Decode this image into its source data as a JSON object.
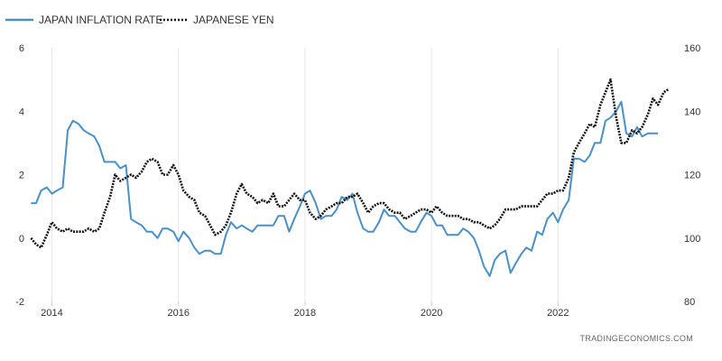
{
  "chart_data": {
    "type": "line",
    "source": "TRADINGECONOMICS.COM",
    "legend_position": "top-left",
    "grid": "vertical",
    "x_ticks": [
      "2014",
      "2016",
      "2018",
      "2020",
      "2022"
    ],
    "x_range": [
      2013.65,
      2023.85
    ],
    "left_axis": {
      "ticks": [
        "-2",
        "0",
        "2",
        "4",
        "6"
      ],
      "range": [
        -2,
        6
      ]
    },
    "right_axis": {
      "ticks": [
        "80",
        "100",
        "120",
        "140",
        "160"
      ],
      "range": [
        80,
        160
      ]
    },
    "colors": {
      "inflation": "#4a90c8",
      "yen": "#111111"
    },
    "series": [
      {
        "name": "JAPAN INFLATION RATE",
        "axis": "left",
        "style": "solid",
        "points": [
          [
            2013.67,
            1.1
          ],
          [
            2013.75,
            1.1
          ],
          [
            2013.83,
            1.5
          ],
          [
            2013.92,
            1.6
          ],
          [
            2014.0,
            1.4
          ],
          [
            2014.08,
            1.5
          ],
          [
            2014.17,
            1.6
          ],
          [
            2014.25,
            3.4
          ],
          [
            2014.33,
            3.7
          ],
          [
            2014.42,
            3.6
          ],
          [
            2014.5,
            3.4
          ],
          [
            2014.58,
            3.3
          ],
          [
            2014.67,
            3.2
          ],
          [
            2014.75,
            2.9
          ],
          [
            2014.83,
            2.4
          ],
          [
            2014.92,
            2.4
          ],
          [
            2015.0,
            2.4
          ],
          [
            2015.08,
            2.2
          ],
          [
            2015.17,
            2.3
          ],
          [
            2015.25,
            0.6
          ],
          [
            2015.33,
            0.5
          ],
          [
            2015.42,
            0.4
          ],
          [
            2015.5,
            0.2
          ],
          [
            2015.58,
            0.2
          ],
          [
            2015.67,
            0.0
          ],
          [
            2015.75,
            0.3
          ],
          [
            2015.83,
            0.3
          ],
          [
            2015.92,
            0.2
          ],
          [
            2016.0,
            -0.1
          ],
          [
            2016.08,
            0.2
          ],
          [
            2016.17,
            0.0
          ],
          [
            2016.25,
            -0.3
          ],
          [
            2016.33,
            -0.5
          ],
          [
            2016.42,
            -0.4
          ],
          [
            2016.5,
            -0.4
          ],
          [
            2016.58,
            -0.5
          ],
          [
            2016.67,
            -0.5
          ],
          [
            2016.75,
            0.1
          ],
          [
            2016.83,
            0.5
          ],
          [
            2016.92,
            0.3
          ],
          [
            2017.0,
            0.4
          ],
          [
            2017.08,
            0.3
          ],
          [
            2017.17,
            0.2
          ],
          [
            2017.25,
            0.4
          ],
          [
            2017.33,
            0.4
          ],
          [
            2017.42,
            0.4
          ],
          [
            2017.5,
            0.4
          ],
          [
            2017.58,
            0.7
          ],
          [
            2017.67,
            0.7
          ],
          [
            2017.75,
            0.2
          ],
          [
            2017.83,
            0.6
          ],
          [
            2017.92,
            1.0
          ],
          [
            2018.0,
            1.4
          ],
          [
            2018.08,
            1.5
          ],
          [
            2018.17,
            1.1
          ],
          [
            2018.25,
            0.6
          ],
          [
            2018.33,
            0.7
          ],
          [
            2018.42,
            0.7
          ],
          [
            2018.5,
            0.9
          ],
          [
            2018.58,
            1.3
          ],
          [
            2018.67,
            1.2
          ],
          [
            2018.75,
            1.4
          ],
          [
            2018.83,
            0.8
          ],
          [
            2018.92,
            0.3
          ],
          [
            2019.0,
            0.2
          ],
          [
            2019.08,
            0.2
          ],
          [
            2019.17,
            0.5
          ],
          [
            2019.25,
            0.9
          ],
          [
            2019.33,
            0.7
          ],
          [
            2019.42,
            0.7
          ],
          [
            2019.5,
            0.5
          ],
          [
            2019.58,
            0.3
          ],
          [
            2019.67,
            0.2
          ],
          [
            2019.75,
            0.2
          ],
          [
            2019.83,
            0.5
          ],
          [
            2019.92,
            0.8
          ],
          [
            2020.0,
            0.7
          ],
          [
            2020.08,
            0.4
          ],
          [
            2020.17,
            0.4
          ],
          [
            2020.25,
            0.1
          ],
          [
            2020.33,
            0.1
          ],
          [
            2020.42,
            0.1
          ],
          [
            2020.5,
            0.3
          ],
          [
            2020.58,
            0.2
          ],
          [
            2020.67,
            0.0
          ],
          [
            2020.75,
            -0.4
          ],
          [
            2020.83,
            -0.9
          ],
          [
            2020.92,
            -1.2
          ],
          [
            2021.0,
            -0.7
          ],
          [
            2021.08,
            -0.5
          ],
          [
            2021.17,
            -0.4
          ],
          [
            2021.25,
            -1.1
          ],
          [
            2021.33,
            -0.8
          ],
          [
            2021.42,
            -0.5
          ],
          [
            2021.5,
            -0.3
          ],
          [
            2021.58,
            -0.4
          ],
          [
            2021.67,
            0.2
          ],
          [
            2021.75,
            0.1
          ],
          [
            2021.83,
            0.6
          ],
          [
            2021.92,
            0.8
          ],
          [
            2022.0,
            0.5
          ],
          [
            2022.08,
            0.9
          ],
          [
            2022.17,
            1.2
          ],
          [
            2022.25,
            2.5
          ],
          [
            2022.33,
            2.5
          ],
          [
            2022.42,
            2.4
          ],
          [
            2022.5,
            2.6
          ],
          [
            2022.58,
            3.0
          ],
          [
            2022.67,
            3.0
          ],
          [
            2022.75,
            3.7
          ],
          [
            2022.83,
            3.8
          ],
          [
            2022.92,
            4.0
          ],
          [
            2023.0,
            4.3
          ],
          [
            2023.08,
            3.3
          ],
          [
            2023.17,
            3.2
          ],
          [
            2023.25,
            3.5
          ],
          [
            2023.33,
            3.2
          ],
          [
            2023.42,
            3.3
          ],
          [
            2023.5,
            3.3
          ],
          [
            2023.58,
            3.3
          ]
        ]
      },
      {
        "name": "JAPANESE YEN",
        "axis": "right",
        "style": "dotted",
        "points": [
          [
            2013.67,
            100
          ],
          [
            2013.75,
            98
          ],
          [
            2013.83,
            97
          ],
          [
            2013.92,
            101
          ],
          [
            2014.0,
            105
          ],
          [
            2014.08,
            103
          ],
          [
            2014.17,
            102
          ],
          [
            2014.25,
            103
          ],
          [
            2014.33,
            102
          ],
          [
            2014.42,
            102
          ],
          [
            2014.5,
            102
          ],
          [
            2014.58,
            103
          ],
          [
            2014.67,
            102
          ],
          [
            2014.75,
            103
          ],
          [
            2014.83,
            108
          ],
          [
            2014.92,
            113
          ],
          [
            2015.0,
            120
          ],
          [
            2015.08,
            118
          ],
          [
            2015.17,
            119
          ],
          [
            2015.25,
            120
          ],
          [
            2015.33,
            119
          ],
          [
            2015.42,
            121
          ],
          [
            2015.5,
            124
          ],
          [
            2015.58,
            125
          ],
          [
            2015.67,
            124
          ],
          [
            2015.75,
            120
          ],
          [
            2015.83,
            120
          ],
          [
            2015.92,
            123
          ],
          [
            2016.0,
            120
          ],
          [
            2016.08,
            115
          ],
          [
            2016.17,
            113
          ],
          [
            2016.25,
            112
          ],
          [
            2016.33,
            108
          ],
          [
            2016.42,
            107
          ],
          [
            2016.5,
            104
          ],
          [
            2016.58,
            101
          ],
          [
            2016.67,
            102
          ],
          [
            2016.75,
            104
          ],
          [
            2016.83,
            108
          ],
          [
            2016.92,
            114
          ],
          [
            2017.0,
            117
          ],
          [
            2017.08,
            114
          ],
          [
            2017.17,
            113
          ],
          [
            2017.25,
            111
          ],
          [
            2017.33,
            112
          ],
          [
            2017.42,
            111
          ],
          [
            2017.5,
            114
          ],
          [
            2017.58,
            110
          ],
          [
            2017.67,
            110
          ],
          [
            2017.75,
            112
          ],
          [
            2017.83,
            114
          ],
          [
            2017.92,
            112
          ],
          [
            2018.0,
            112
          ],
          [
            2018.08,
            108
          ],
          [
            2018.17,
            106
          ],
          [
            2018.25,
            107
          ],
          [
            2018.33,
            109
          ],
          [
            2018.42,
            110
          ],
          [
            2018.5,
            111
          ],
          [
            2018.58,
            111
          ],
          [
            2018.67,
            113
          ],
          [
            2018.75,
            113
          ],
          [
            2018.83,
            114
          ],
          [
            2018.92,
            111
          ],
          [
            2019.0,
            108
          ],
          [
            2019.08,
            110
          ],
          [
            2019.17,
            111
          ],
          [
            2019.25,
            111
          ],
          [
            2019.33,
            109
          ],
          [
            2019.42,
            108
          ],
          [
            2019.5,
            108
          ],
          [
            2019.58,
            106
          ],
          [
            2019.67,
            107
          ],
          [
            2019.75,
            108
          ],
          [
            2019.83,
            109
          ],
          [
            2019.92,
            109
          ],
          [
            2020.0,
            108
          ],
          [
            2020.08,
            110
          ],
          [
            2020.17,
            108
          ],
          [
            2020.25,
            107
          ],
          [
            2020.33,
            107
          ],
          [
            2020.42,
            107
          ],
          [
            2020.5,
            106
          ],
          [
            2020.58,
            106
          ],
          [
            2020.67,
            105
          ],
          [
            2020.75,
            105
          ],
          [
            2020.83,
            104
          ],
          [
            2020.92,
            103
          ],
          [
            2021.0,
            104
          ],
          [
            2021.08,
            106
          ],
          [
            2021.17,
            109
          ],
          [
            2021.25,
            109
          ],
          [
            2021.33,
            109
          ],
          [
            2021.42,
            110
          ],
          [
            2021.5,
            110
          ],
          [
            2021.58,
            110
          ],
          [
            2021.67,
            110
          ],
          [
            2021.75,
            112
          ],
          [
            2021.83,
            114
          ],
          [
            2021.92,
            114
          ],
          [
            2022.0,
            115
          ],
          [
            2022.08,
            115
          ],
          [
            2022.17,
            119
          ],
          [
            2022.25,
            127
          ],
          [
            2022.33,
            130
          ],
          [
            2022.42,
            133
          ],
          [
            2022.5,
            136
          ],
          [
            2022.58,
            135
          ],
          [
            2022.67,
            142
          ],
          [
            2022.75,
            146
          ],
          [
            2022.83,
            150
          ],
          [
            2022.92,
            138
          ],
          [
            2023.0,
            130
          ],
          [
            2023.08,
            130
          ],
          [
            2023.17,
            134
          ],
          [
            2023.25,
            133
          ],
          [
            2023.33,
            135
          ],
          [
            2023.42,
            139
          ],
          [
            2023.5,
            144
          ],
          [
            2023.58,
            142
          ],
          [
            2023.67,
            146
          ],
          [
            2023.75,
            147
          ]
        ]
      }
    ]
  }
}
